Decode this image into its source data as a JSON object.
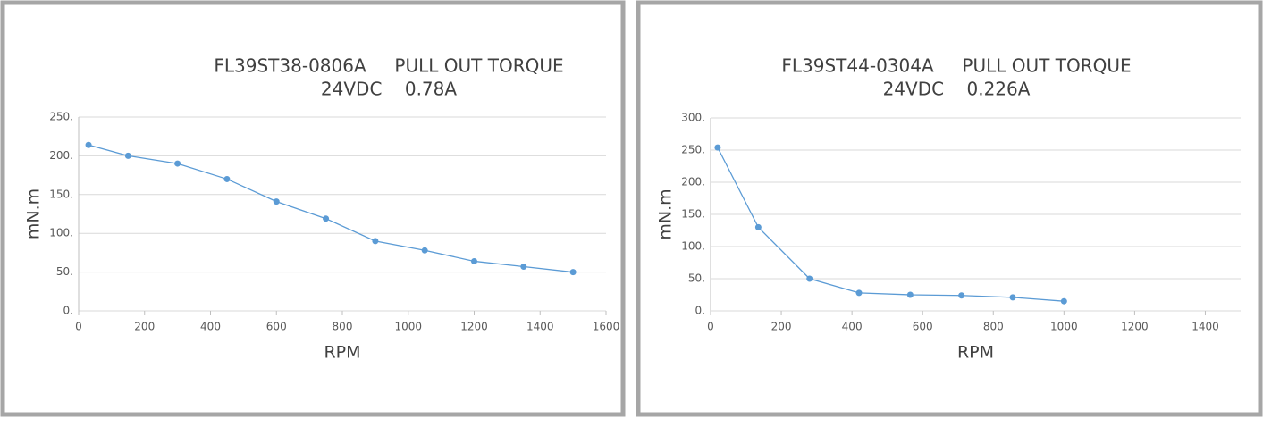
{
  "chart_data": [
    {
      "type": "line",
      "title": "FL39ST38-0806A     PULL OUT TORQUE",
      "subtitle": "24VDC    0.78A",
      "x_label": "RPM",
      "y_label": "mN.m",
      "x": [
        30,
        150,
        300,
        450,
        600,
        750,
        900,
        1050,
        1200,
        1350,
        1500
      ],
      "series": [
        {
          "color": "#5b9bd5",
          "values": [
            214,
            200,
            190,
            170,
            141,
            119,
            90,
            78,
            64,
            57,
            50
          ]
        }
      ],
      "xlim": [
        0,
        1600
      ],
      "xticks": [
        0,
        200,
        400,
        600,
        800,
        1000,
        1200,
        1400,
        1600
      ],
      "ylim": [
        0,
        250
      ],
      "yticks": [
        {
          "value": 0,
          "label": "0."
        },
        {
          "value": 50,
          "label": "50."
        },
        {
          "value": 100,
          "label": "100."
        },
        {
          "value": 150,
          "label": "150."
        },
        {
          "value": 200,
          "label": "200."
        },
        {
          "value": 250,
          "label": "250."
        }
      ],
      "grid": true
    },
    {
      "type": "line",
      "title": "FL39ST44-0304A     PULL OUT TORQUE",
      "subtitle": "24VDC    0.226A",
      "x_label": "RPM",
      "y_label": "mN.m",
      "x": [
        20,
        135,
        280,
        420,
        565,
        710,
        855,
        1000
      ],
      "series": [
        {
          "color": "#5b9bd5",
          "values": [
            254,
            130,
            50,
            28,
            25,
            24,
            21,
            15
          ]
        }
      ],
      "xlim": [
        0,
        1500
      ],
      "xticks": [
        0,
        200,
        400,
        600,
        800,
        1000,
        1200,
        1400
      ],
      "ylim": [
        0,
        300
      ],
      "yticks": [
        {
          "value": 0,
          "label": "0."
        },
        {
          "value": 50,
          "label": "50."
        },
        {
          "value": 100,
          "label": "100."
        },
        {
          "value": 150,
          "label": "150."
        },
        {
          "value": 200,
          "label": "200."
        },
        {
          "value": 250,
          "label": "250."
        },
        {
          "value": 300,
          "label": "300."
        }
      ],
      "grid": true
    }
  ]
}
